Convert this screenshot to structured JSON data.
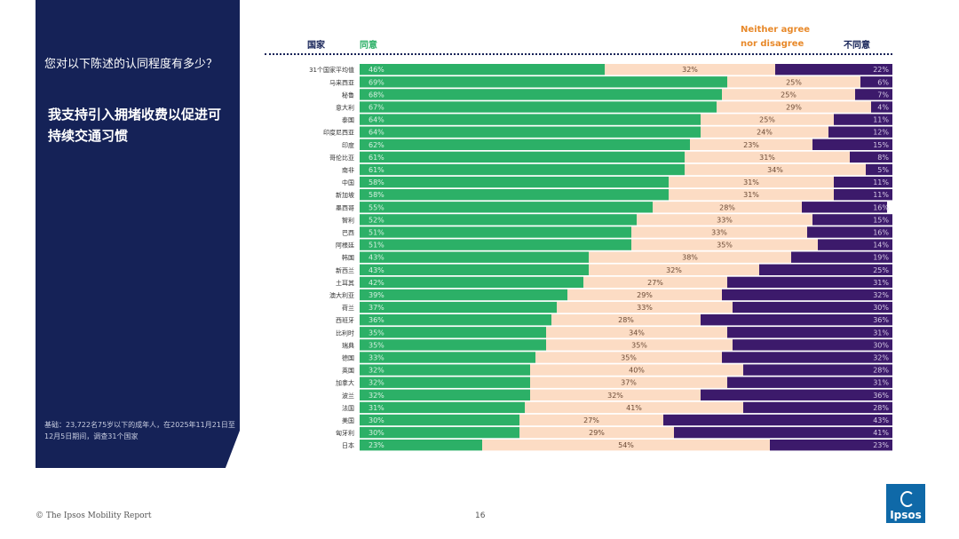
{
  "panel": {
    "question": "您对以下陈述的认同程度有多少？",
    "statement": "我支持引入拥堵收费以促进可持续交通习惯",
    "base_note": "基础：23,722名75岁以下的成年人，在2025年11月21日至12月5日期间，调查31个国家"
  },
  "headers": {
    "country": "国家",
    "agree": "同意",
    "neither": "Neither agree nor disagree",
    "disagree": "不同意"
  },
  "footer": {
    "copyright": "© The Ipsos Mobility Report",
    "page_number": "16",
    "logo_text": "Ipsos"
  },
  "colors": {
    "agree": "#2cb067",
    "neither": "#fcdcc4",
    "disagree": "#3c1a6b",
    "navy": "#152257"
  },
  "chart_data": {
    "type": "bar",
    "stacked": true,
    "orientation": "horizontal",
    "percent_scale": [
      0,
      100
    ],
    "categories": [
      "31个国家平均值",
      "马来西亚",
      "秘鲁",
      "意大利",
      "泰国",
      "印度尼西亚",
      "印度",
      "哥伦比亚",
      "南非",
      "中国",
      "新加坡",
      "墨西哥",
      "智利",
      "巴西",
      "阿根廷",
      "韩国",
      "新西兰",
      "土耳其",
      "澳大利亚",
      "荷兰",
      "西班牙",
      "比利时",
      "瑞典",
      "德国",
      "英国",
      "加拿大",
      "波兰",
      "法国",
      "美国",
      "匈牙利",
      "日本"
    ],
    "series": [
      {
        "name": "同意",
        "values": [
          46,
          69,
          68,
          67,
          64,
          64,
          62,
          61,
          61,
          58,
          58,
          55,
          52,
          51,
          51,
          43,
          43,
          42,
          39,
          37,
          36,
          35,
          35,
          33,
          32,
          32,
          32,
          31,
          30,
          30,
          23
        ]
      },
      {
        "name": "Neither agree nor disagree",
        "values": [
          32,
          25,
          25,
          29,
          25,
          24,
          23,
          31,
          34,
          31,
          31,
          28,
          33,
          33,
          35,
          38,
          32,
          27,
          29,
          33,
          28,
          34,
          35,
          35,
          40,
          37,
          32,
          41,
          27,
          29,
          54
        ]
      },
      {
        "name": "不同意",
        "values": [
          22,
          6,
          7,
          4,
          11,
          12,
          15,
          8,
          5,
          11,
          11,
          16,
          15,
          16,
          14,
          19,
          25,
          31,
          32,
          30,
          36,
          31,
          30,
          32,
          28,
          31,
          36,
          28,
          43,
          41,
          23
        ]
      }
    ]
  }
}
